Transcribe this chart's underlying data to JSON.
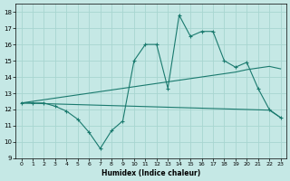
{
  "xlabel": "Humidex (Indice chaleur)",
  "bg_color": "#c5e8e5",
  "grid_color": "#a8d5d0",
  "line_color": "#1a7a6e",
  "x_ticks": [
    0,
    1,
    2,
    3,
    4,
    5,
    6,
    7,
    8,
    9,
    10,
    11,
    12,
    13,
    14,
    15,
    16,
    17,
    18,
    19,
    20,
    21,
    22,
    23
  ],
  "y_ticks": [
    9,
    10,
    11,
    12,
    13,
    14,
    15,
    16,
    17,
    18
  ],
  "xlim": [
    -0.5,
    23.5
  ],
  "ylim": [
    9.0,
    18.5
  ],
  "curve1_x": [
    0,
    1,
    2,
    3,
    4,
    5,
    6,
    7,
    8,
    9,
    10,
    11,
    12,
    13,
    14,
    15,
    16,
    17,
    18,
    19,
    20,
    21,
    22,
    23
  ],
  "curve1_y": [
    12.4,
    12.4,
    12.4,
    12.2,
    11.9,
    11.4,
    10.6,
    9.6,
    10.7,
    11.3,
    15.0,
    16.0,
    16.0,
    13.3,
    17.8,
    16.5,
    16.8,
    16.8,
    15.0,
    14.6,
    14.9,
    13.3,
    12.0,
    11.5
  ],
  "curve2_x": [
    0,
    1,
    2,
    3,
    4,
    5,
    6,
    7,
    8,
    9,
    10,
    11,
    12,
    13,
    14,
    15,
    16,
    17,
    18,
    19,
    20,
    21,
    22,
    23
  ],
  "curve2_y": [
    12.4,
    12.5,
    12.6,
    12.7,
    12.8,
    12.9,
    13.0,
    13.1,
    13.2,
    13.3,
    13.4,
    13.5,
    13.6,
    13.7,
    13.8,
    13.9,
    14.0,
    14.1,
    14.2,
    14.3,
    14.45,
    14.55,
    14.65,
    14.5
  ],
  "curve3_x": [
    0,
    1,
    2,
    3,
    4,
    5,
    6,
    7,
    8,
    9,
    10,
    11,
    12,
    13,
    14,
    15,
    16,
    17,
    18,
    19,
    20,
    21,
    22,
    23
  ],
  "curve3_y": [
    12.4,
    12.38,
    12.36,
    12.34,
    12.32,
    12.3,
    12.28,
    12.26,
    12.24,
    12.22,
    12.2,
    12.18,
    12.16,
    12.14,
    12.12,
    12.1,
    12.08,
    12.06,
    12.04,
    12.02,
    12.0,
    11.98,
    11.96,
    11.5
  ]
}
